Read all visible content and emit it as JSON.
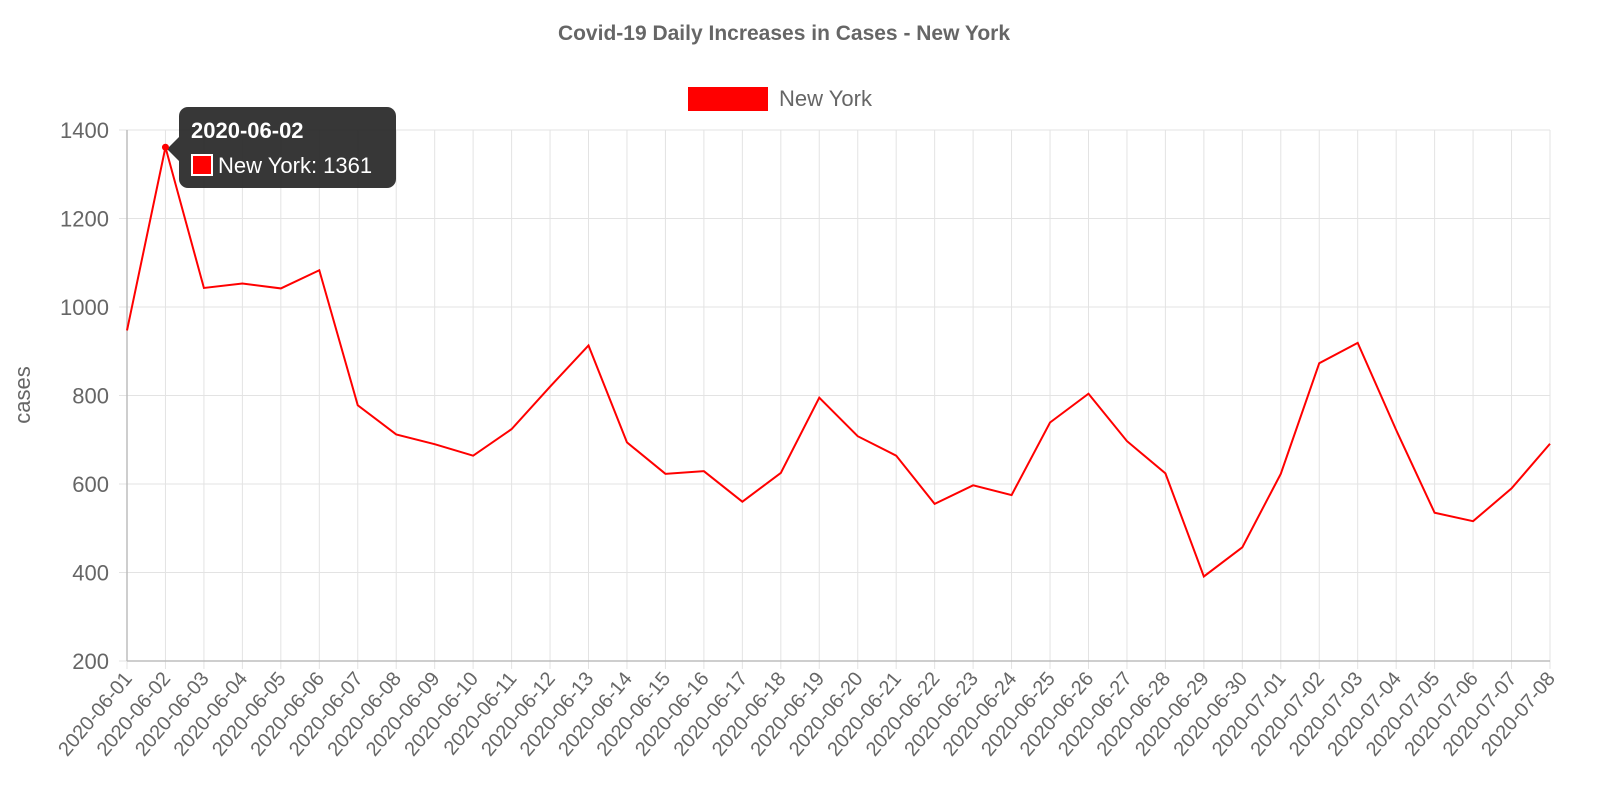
{
  "chart_data": {
    "type": "line",
    "title": "Covid-19 Daily Increases in Cases - New York",
    "ylabel": "cases",
    "xlabel": "",
    "ylim": [
      200,
      1400
    ],
    "yticks": [
      200,
      400,
      600,
      800,
      1000,
      1200,
      1400
    ],
    "grid": true,
    "legend_position": "top-center",
    "x": [
      "2020-06-01",
      "2020-06-02",
      "2020-06-03",
      "2020-06-04",
      "2020-06-05",
      "2020-06-06",
      "2020-06-07",
      "2020-06-08",
      "2020-06-09",
      "2020-06-10",
      "2020-06-11",
      "2020-06-12",
      "2020-06-13",
      "2020-06-14",
      "2020-06-15",
      "2020-06-16",
      "2020-06-17",
      "2020-06-18",
      "2020-06-19",
      "2020-06-20",
      "2020-06-21",
      "2020-06-22",
      "2020-06-23",
      "2020-06-24",
      "2020-06-25",
      "2020-06-26",
      "2020-06-27",
      "2020-06-28",
      "2020-06-29",
      "2020-06-30",
      "2020-07-01",
      "2020-07-02",
      "2020-07-03",
      "2020-07-04",
      "2020-07-05",
      "2020-07-06",
      "2020-07-07",
      "2020-07-08"
    ],
    "series": [
      {
        "name": "New York",
        "color": "#ff0000",
        "values": [
          947,
          1361,
          1043,
          1053,
          1042,
          1083,
          778,
          712,
          690,
          664,
          724,
          820,
          913,
          694,
          623,
          629,
          560,
          625,
          795,
          708,
          664,
          555,
          597,
          575,
          739,
          804,
          697,
          624,
          391,
          457,
          623,
          873,
          919,
          722,
          535,
          516,
          590,
          691
        ]
      }
    ],
    "tooltip": {
      "title": "2020-06-02",
      "label": "New York: 1361",
      "index": 1
    }
  }
}
